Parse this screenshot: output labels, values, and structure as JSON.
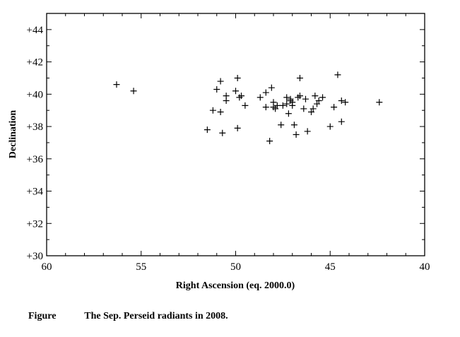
{
  "caption": {
    "label": "Figure",
    "text": "The Sep. Perseid radiants in 2008."
  },
  "chart_data": {
    "type": "scatter",
    "xlabel": "Right Ascension (eq. 2000.0)",
    "ylabel": "Declination",
    "xlim": [
      60,
      40
    ],
    "ylim": [
      30,
      45
    ],
    "x_reversed": true,
    "x_ticks": [
      60,
      55,
      50,
      45,
      40
    ],
    "x_tick_labels": [
      "60",
      "55",
      "50",
      "45",
      "40"
    ],
    "y_ticks": [
      30,
      32,
      34,
      36,
      38,
      40,
      42,
      44
    ],
    "y_tick_labels": [
      "+30",
      "+32",
      "+34",
      "+36",
      "+38",
      "+40",
      "+42",
      "+44"
    ],
    "marker": "plus",
    "grid": false,
    "series": [
      {
        "points": [
          [
            56.3,
            40.6
          ],
          [
            55.4,
            40.2
          ],
          [
            51.5,
            37.8
          ],
          [
            51.2,
            39.0
          ],
          [
            51.0,
            40.3
          ],
          [
            50.8,
            40.8
          ],
          [
            50.8,
            38.9
          ],
          [
            50.7,
            37.6
          ],
          [
            50.5,
            39.9
          ],
          [
            50.5,
            39.6
          ],
          [
            50.0,
            40.2
          ],
          [
            49.9,
            41.0
          ],
          [
            49.9,
            37.9
          ],
          [
            49.8,
            39.8
          ],
          [
            49.7,
            39.9
          ],
          [
            49.5,
            39.3
          ],
          [
            48.7,
            39.8
          ],
          [
            48.4,
            40.1
          ],
          [
            48.4,
            39.2
          ],
          [
            48.2,
            37.1
          ],
          [
            48.1,
            40.4
          ],
          [
            48.0,
            39.5
          ],
          [
            48.0,
            39.2
          ],
          [
            47.9,
            39.1
          ],
          [
            47.8,
            39.3
          ],
          [
            47.6,
            38.1
          ],
          [
            47.5,
            39.3
          ],
          [
            47.3,
            39.8
          ],
          [
            47.3,
            39.4
          ],
          [
            47.2,
            38.8
          ],
          [
            47.1,
            39.6
          ],
          [
            47.1,
            39.7
          ],
          [
            47.0,
            39.5
          ],
          [
            47.0,
            39.3
          ],
          [
            46.9,
            38.1
          ],
          [
            46.8,
            37.5
          ],
          [
            46.7,
            39.8
          ],
          [
            46.6,
            41.0
          ],
          [
            46.6,
            39.9
          ],
          [
            46.4,
            39.1
          ],
          [
            46.3,
            39.7
          ],
          [
            46.2,
            37.7
          ],
          [
            46.0,
            38.9
          ],
          [
            45.9,
            39.1
          ],
          [
            45.8,
            39.9
          ],
          [
            45.7,
            39.4
          ],
          [
            45.6,
            39.6
          ],
          [
            45.4,
            39.8
          ],
          [
            45.0,
            38.0
          ],
          [
            44.8,
            39.2
          ],
          [
            44.6,
            41.2
          ],
          [
            44.4,
            39.6
          ],
          [
            44.4,
            38.3
          ],
          [
            44.2,
            39.5
          ],
          [
            42.4,
            39.5
          ]
        ]
      }
    ]
  }
}
